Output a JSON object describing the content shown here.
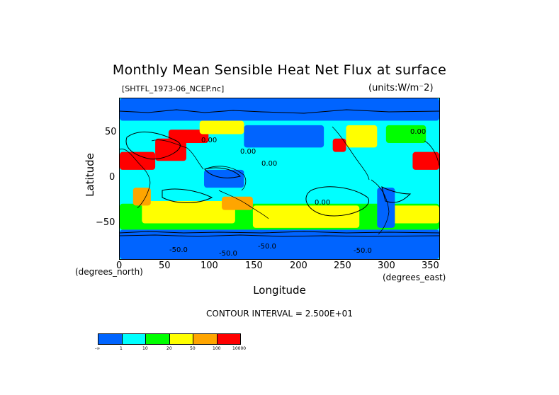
{
  "title": "Monthly Mean Sensible Heat Net Flux at surface",
  "file_label": "[SHTFL_1973-06_NCEP.nc]",
  "units_label": "(units:W/m⁻2)",
  "axes": {
    "xlabel": "Longitude",
    "ylabel": "Latitude",
    "x_units": "(degrees_north)",
    "x_units_east": "(degrees_east)",
    "x_ticks": [
      "0",
      "50",
      "100",
      "150",
      "200",
      "250",
      "300",
      "350"
    ],
    "y_ticks": [
      "50",
      "0",
      "−50"
    ]
  },
  "contour_text": "CONTOUR INTERVAL = 2.500E+01",
  "map_labels": [
    "-50.0",
    "-50.0",
    "-50.0",
    "-50.0",
    "0.00",
    "0.00",
    "0.00",
    "0.00",
    "0.00"
  ],
  "colorbar": {
    "colors": [
      "#0064ff",
      "#00ffff",
      "#00ff00",
      "#ffff00",
      "#ffa500",
      "#ff0000"
    ],
    "labels": [
      "-∞",
      "1",
      "10",
      "20",
      "50",
      "100",
      "10000"
    ]
  },
  "chart_data": {
    "type": "heatmap",
    "title": "Monthly Mean Sensible Heat Net Flux at surface",
    "xlabel": "Longitude",
    "ylabel": "Latitude",
    "xlim": [
      0,
      360
    ],
    "ylim": [
      -90,
      90
    ],
    "x_ticks": [
      0,
      50,
      100,
      150,
      200,
      250,
      300,
      350
    ],
    "y_ticks": [
      50,
      0,
      -50
    ],
    "color_levels": [
      -1000,
      1,
      10,
      20,
      50,
      100,
      10000
    ],
    "contour_interval": 25,
    "units": "W/m^-2",
    "regions": [
      {
        "name": "antarctic_belt",
        "lon": [
          0,
          360
        ],
        "lat": [
          -90,
          -57
        ],
        "class": 0
      },
      {
        "name": "southern_ocean",
        "lon": [
          0,
          360
        ],
        "lat": [
          -57,
          -28
        ],
        "class": 2
      },
      {
        "name": "south_indian_yellow",
        "lon": [
          25,
          130
        ],
        "lat": [
          -50,
          -25
        ],
        "class": 3
      },
      {
        "name": "south_pacific_yellow",
        "lon": [
          150,
          270
        ],
        "lat": [
          -55,
          -30
        ],
        "class": 3
      },
      {
        "name": "south_atlantic_yellow",
        "lon": [
          300,
          360
        ],
        "lat": [
          -50,
          -30
        ],
        "class": 3
      },
      {
        "name": "tropics_cyan",
        "lon": [
          0,
          360
        ],
        "lat": [
          -25,
          20
        ],
        "class": 1
      },
      {
        "name": "north_pacific_blue",
        "lon": [
          140,
          230
        ],
        "lat": [
          35,
          60
        ],
        "class": 0
      },
      {
        "name": "north_atlantic_green",
        "lon": [
          300,
          345
        ],
        "lat": [
          40,
          60
        ],
        "class": 2
      },
      {
        "name": "arctic_blue",
        "lon": [
          0,
          360
        ],
        "lat": [
          65,
          90
        ],
        "class": 0
      },
      {
        "name": "sahara_hot",
        "lon": [
          330,
          360
        ],
        "lat": [
          10,
          30
        ],
        "class": 5
      },
      {
        "name": "north_africa_hot",
        "lon": [
          0,
          40
        ],
        "lat": [
          10,
          30
        ],
        "class": 5
      },
      {
        "name": "middle_east_hot",
        "lon": [
          40,
          75
        ],
        "lat": [
          20,
          45
        ],
        "class": 5
      },
      {
        "name": "central_asia_hot",
        "lon": [
          55,
          100
        ],
        "lat": [
          40,
          55
        ],
        "class": 5
      },
      {
        "name": "western_us_hot",
        "lon": [
          240,
          255
        ],
        "lat": [
          30,
          45
        ],
        "class": 5
      },
      {
        "name": "southern_africa_orange",
        "lon": [
          15,
          35
        ],
        "lat": [
          -30,
          -10
        ],
        "class": 4
      },
      {
        "name": "australia_orange",
        "lon": [
          115,
          150
        ],
        "lat": [
          -35,
          -20
        ],
        "class": 4
      },
      {
        "name": "south_america_blue",
        "lon": [
          290,
          310
        ],
        "lat": [
          -55,
          -10
        ],
        "class": 0
      },
      {
        "name": "maritime_continent_blue",
        "lon": [
          95,
          140
        ],
        "lat": [
          -10,
          10
        ],
        "class": 0
      },
      {
        "name": "north_america_yellow",
        "lon": [
          255,
          290
        ],
        "lat": [
          35,
          60
        ],
        "class": 3
      },
      {
        "name": "siberia_yellow",
        "lon": [
          90,
          140
        ],
        "lat": [
          50,
          65
        ],
        "class": 3
      }
    ]
  }
}
